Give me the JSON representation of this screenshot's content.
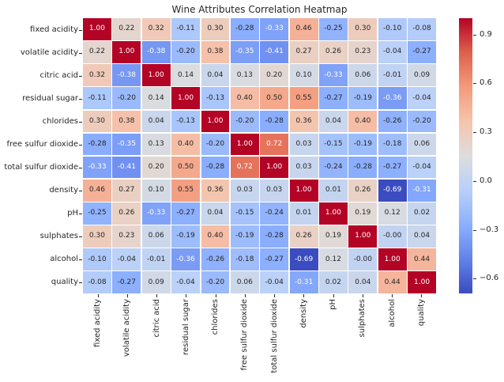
{
  "chart_data": {
    "type": "heatmap",
    "title": "Wine Attributes Correlation Heatmap",
    "categories": [
      "fixed acidity",
      "volatile acidity",
      "citric acid",
      "residual sugar",
      "chlorides",
      "free sulfur dioxide",
      "total sulfur dioxide",
      "density",
      "pH",
      "sulphates",
      "alcohol",
      "quality"
    ],
    "matrix": [
      [
        "1.00",
        "0.22",
        "0.32",
        "-0.11",
        "0.30",
        "-0.28",
        "-0.33",
        "0.46",
        "-0.25",
        "0.30",
        "-0.10",
        "-0.08"
      ],
      [
        "0.22",
        "1.00",
        "-0.38",
        "-0.20",
        "0.38",
        "-0.35",
        "-0.41",
        "0.27",
        "0.26",
        "0.23",
        "-0.04",
        "-0.27"
      ],
      [
        "0.32",
        "-0.38",
        "1.00",
        "0.14",
        "0.04",
        "0.13",
        "0.20",
        "0.10",
        "-0.33",
        "0.06",
        "-0.01",
        "0.09"
      ],
      [
        "-0.11",
        "-0.20",
        "0.14",
        "1.00",
        "-0.13",
        "0.40",
        "0.50",
        "0.55",
        "-0.27",
        "-0.19",
        "-0.36",
        "-0.04"
      ],
      [
        "0.30",
        "0.38",
        "0.04",
        "-0.13",
        "1.00",
        "-0.20",
        "-0.28",
        "0.36",
        "0.04",
        "0.40",
        "-0.26",
        "-0.20"
      ],
      [
        "-0.28",
        "-0.35",
        "0.13",
        "0.40",
        "-0.20",
        "1.00",
        "0.72",
        "0.03",
        "-0.15",
        "-0.19",
        "-0.18",
        "0.06"
      ],
      [
        "-0.33",
        "-0.41",
        "0.20",
        "0.50",
        "-0.28",
        "0.72",
        "1.00",
        "0.03",
        "-0.24",
        "-0.28",
        "-0.27",
        "-0.04"
      ],
      [
        "0.46",
        "0.27",
        "0.10",
        "0.55",
        "0.36",
        "0.03",
        "0.03",
        "1.00",
        "0.01",
        "0.26",
        "-0.69",
        "-0.31"
      ],
      [
        "-0.25",
        "0.26",
        "-0.33",
        "-0.27",
        "0.04",
        "-0.15",
        "-0.24",
        "0.01",
        "1.00",
        "0.19",
        "0.12",
        "0.02"
      ],
      [
        "0.30",
        "0.23",
        "0.06",
        "-0.19",
        "0.40",
        "-0.19",
        "-0.28",
        "0.26",
        "0.19",
        "1.00",
        "-0.00",
        "0.04"
      ],
      [
        "-0.10",
        "-0.04",
        "-0.01",
        "-0.36",
        "-0.26",
        "-0.18",
        "-0.27",
        "-0.69",
        "0.12",
        "-0.00",
        "1.00",
        "0.44"
      ],
      [
        "-0.08",
        "-0.27",
        "0.09",
        "-0.04",
        "-0.20",
        "0.06",
        "-0.04",
        "-0.31",
        "0.02",
        "0.04",
        "0.44",
        "1.00"
      ]
    ],
    "colormap": "coolwarm",
    "vmin": -0.69,
    "vmax": 1.0,
    "colorbar_ticks": [
      {
        "value": 0.9,
        "label": "0.9"
      },
      {
        "value": 0.6,
        "label": "0.6"
      },
      {
        "value": 0.3,
        "label": "0.3"
      },
      {
        "value": 0.0,
        "label": "0.0"
      },
      {
        "value": -0.3,
        "label": "−0.3"
      },
      {
        "value": -0.6,
        "label": "−0.6"
      }
    ],
    "colors": {
      "max_color": "#b40426",
      "mid_color": "#dddddd",
      "min_color": "#3b4cc0",
      "grid_line_color": "#ffffff",
      "dark_text": "#262626",
      "light_text": "#ffffff"
    }
  }
}
